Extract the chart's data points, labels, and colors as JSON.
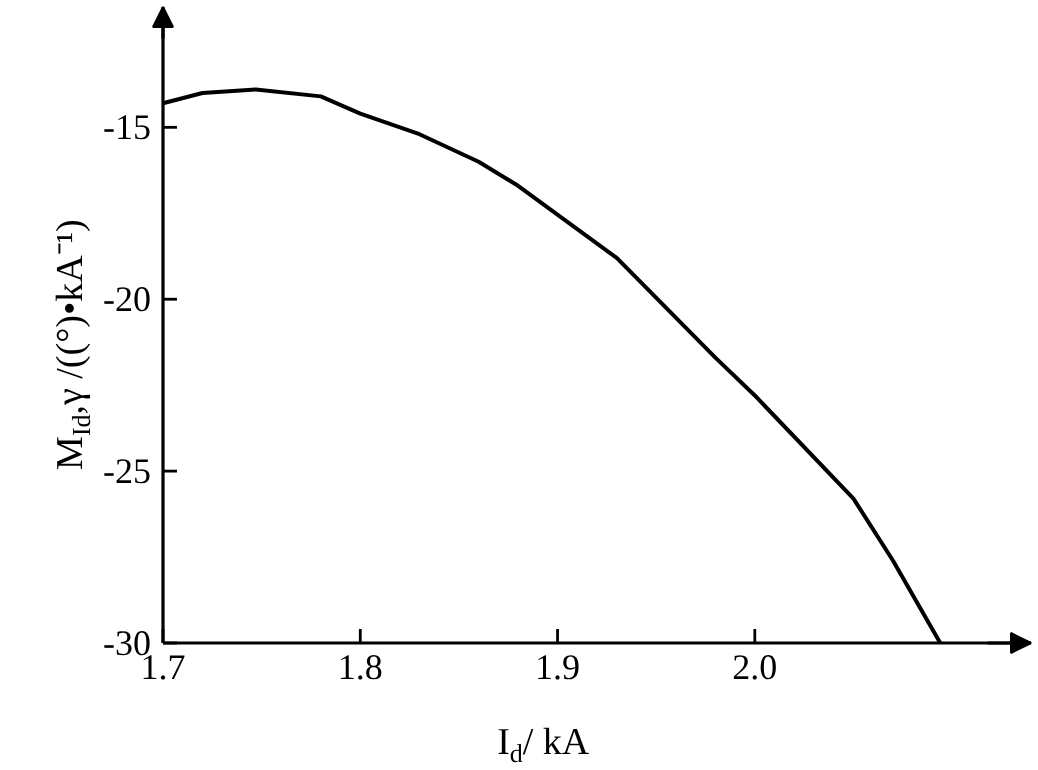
{
  "chart_data": {
    "type": "line",
    "xlabel": "I$_{d}$/ kA",
    "ylabel": "M$_{Id}$,γ /((°)•kA⁻¹)",
    "x": [
      1.7,
      1.72,
      1.747,
      1.78,
      1.8,
      1.83,
      1.86,
      1.88,
      1.93,
      1.98,
      2.0,
      2.05,
      2.07,
      2.094
    ],
    "series": [
      {
        "color": "#000000",
        "values": [
          -14.3,
          -14.0,
          -13.9,
          -14.1,
          -14.6,
          -15.2,
          -16.0,
          -16.7,
          -18.8,
          -21.7,
          -22.8,
          -25.8,
          -27.6,
          -30.0
        ]
      }
    ],
    "xlim": [
      1.7,
      2.14
    ],
    "ylim": [
      -30,
      -11.5
    ],
    "xticks": [
      {
        "value": 1.7,
        "label": "1.7"
      },
      {
        "value": 1.8,
        "label": "1.8"
      },
      {
        "value": 1.9,
        "label": "1.9"
      },
      {
        "value": 2.0,
        "label": "2.0"
      }
    ],
    "yticks": [
      -30,
      -25,
      -20,
      -15
    ],
    "grid": false,
    "marker": "none",
    "line_style": "solid"
  }
}
